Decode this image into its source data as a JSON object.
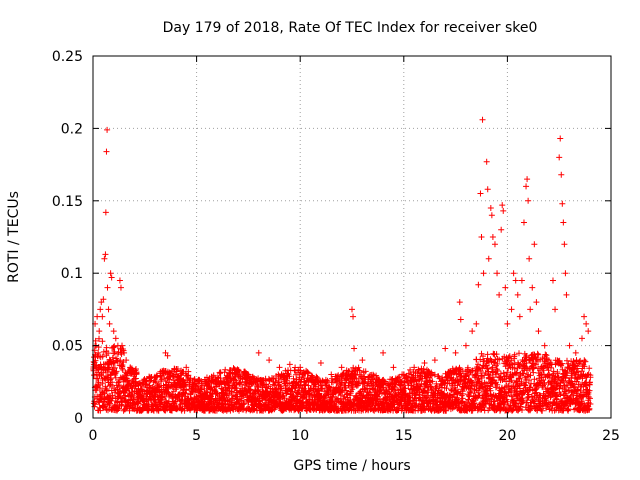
{
  "chart_data": {
    "type": "scatter",
    "title": "Day 179 of 2018, Rate Of TEC Index for receiver ske0",
    "xlabel": "GPS time / hours",
    "ylabel": "ROTI / TECUs",
    "xlim": [
      0,
      25
    ],
    "ylim": [
      0,
      0.25
    ],
    "xticks": [
      0,
      5,
      10,
      15,
      20,
      25
    ],
    "xtick_labels": [
      "0",
      "5",
      "10",
      "15",
      "20",
      "25"
    ],
    "yticks": [
      0,
      0.05,
      0.1,
      0.15,
      0.2,
      0.25
    ],
    "ytick_labels": [
      "0",
      "0.05",
      "0.1",
      "0.15",
      "0.2",
      "0.25"
    ],
    "grid": true,
    "marker": "plus",
    "color": "#ff0000",
    "series": [
      {
        "points": [
          [
            0.1,
            0.065
          ],
          [
            0.15,
            0.05
          ],
          [
            0.2,
            0.07
          ],
          [
            0.25,
            0.045
          ],
          [
            0.3,
            0.06
          ],
          [
            0.35,
            0.075
          ],
          [
            0.4,
            0.08
          ],
          [
            0.45,
            0.07
          ],
          [
            0.5,
            0.082
          ],
          [
            0.55,
            0.11
          ],
          [
            0.6,
            0.113
          ],
          [
            0.62,
            0.142
          ],
          [
            0.65,
            0.184
          ],
          [
            0.68,
            0.199
          ],
          [
            0.7,
            0.09
          ],
          [
            0.75,
            0.075
          ],
          [
            0.8,
            0.065
          ],
          [
            0.85,
            0.1
          ],
          [
            0.9,
            0.097
          ],
          [
            1.0,
            0.06
          ],
          [
            1.1,
            0.055
          ],
          [
            1.2,
            0.05
          ],
          [
            1.3,
            0.095
          ],
          [
            1.35,
            0.09
          ],
          [
            1.4,
            0.05
          ],
          [
            1.5,
            0.045
          ],
          [
            1.6,
            0.04
          ],
          [
            1.8,
            0.035
          ],
          [
            2.0,
            0.03
          ],
          [
            2.5,
            0.025
          ],
          [
            3.0,
            0.028
          ],
          [
            3.5,
            0.045
          ],
          [
            3.6,
            0.043
          ],
          [
            4.0,
            0.03
          ],
          [
            4.5,
            0.035
          ],
          [
            4.6,
            0.032
          ],
          [
            5.5,
            0.028
          ],
          [
            6.5,
            0.027
          ],
          [
            7.5,
            0.03
          ],
          [
            8.0,
            0.045
          ],
          [
            8.5,
            0.04
          ],
          [
            9.0,
            0.035
          ],
          [
            9.5,
            0.037
          ],
          [
            10.0,
            0.035
          ],
          [
            11.0,
            0.038
          ],
          [
            11.5,
            0.03
          ],
          [
            12.0,
            0.035
          ],
          [
            12.5,
            0.075
          ],
          [
            12.55,
            0.07
          ],
          [
            12.6,
            0.048
          ],
          [
            13.0,
            0.04
          ],
          [
            14.0,
            0.045
          ],
          [
            14.5,
            0.035
          ],
          [
            15.0,
            0.03
          ],
          [
            15.5,
            0.035
          ],
          [
            16.0,
            0.038
          ],
          [
            16.5,
            0.04
          ],
          [
            17.0,
            0.048
          ],
          [
            17.5,
            0.045
          ],
          [
            17.7,
            0.08
          ],
          [
            17.75,
            0.068
          ],
          [
            18.0,
            0.05
          ],
          [
            18.3,
            0.06
          ],
          [
            18.5,
            0.065
          ],
          [
            18.6,
            0.092
          ],
          [
            18.7,
            0.155
          ],
          [
            18.75,
            0.125
          ],
          [
            18.8,
            0.206
          ],
          [
            18.85,
            0.1
          ],
          [
            19.0,
            0.177
          ],
          [
            19.05,
            0.158
          ],
          [
            19.1,
            0.11
          ],
          [
            19.2,
            0.145
          ],
          [
            19.25,
            0.14
          ],
          [
            19.3,
            0.125
          ],
          [
            19.4,
            0.12
          ],
          [
            19.5,
            0.1
          ],
          [
            19.6,
            0.085
          ],
          [
            19.7,
            0.13
          ],
          [
            19.75,
            0.147
          ],
          [
            19.8,
            0.143
          ],
          [
            19.9,
            0.09
          ],
          [
            20.0,
            0.065
          ],
          [
            20.2,
            0.075
          ],
          [
            20.3,
            0.1
          ],
          [
            20.4,
            0.095
          ],
          [
            20.5,
            0.085
          ],
          [
            20.6,
            0.07
          ],
          [
            20.7,
            0.095
          ],
          [
            20.8,
            0.135
          ],
          [
            20.9,
            0.16
          ],
          [
            20.95,
            0.165
          ],
          [
            21.0,
            0.15
          ],
          [
            21.05,
            0.11
          ],
          [
            21.1,
            0.075
          ],
          [
            21.2,
            0.09
          ],
          [
            21.3,
            0.12
          ],
          [
            21.4,
            0.08
          ],
          [
            21.5,
            0.06
          ],
          [
            21.8,
            0.05
          ],
          [
            22.0,
            0.04
          ],
          [
            22.2,
            0.095
          ],
          [
            22.3,
            0.075
          ],
          [
            22.5,
            0.18
          ],
          [
            22.55,
            0.193
          ],
          [
            22.6,
            0.168
          ],
          [
            22.65,
            0.148
          ],
          [
            22.7,
            0.135
          ],
          [
            22.75,
            0.12
          ],
          [
            22.8,
            0.1
          ],
          [
            22.85,
            0.085
          ],
          [
            23.0,
            0.05
          ],
          [
            23.3,
            0.045
          ],
          [
            23.6,
            0.055
          ],
          [
            23.7,
            0.07
          ],
          [
            23.8,
            0.065
          ],
          [
            23.9,
            0.06
          ]
        ]
      }
    ]
  }
}
